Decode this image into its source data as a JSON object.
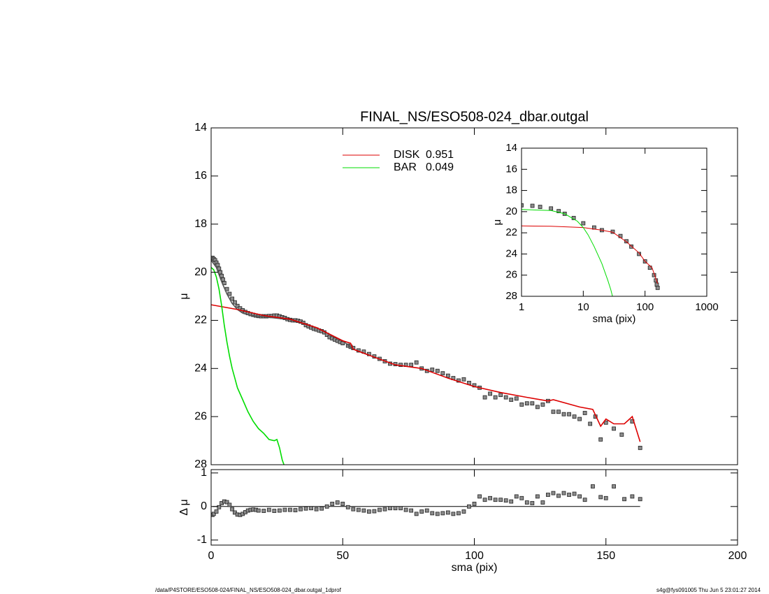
{
  "footer": {
    "left": "/data/P4STORE/ESO508-024/FINAL_NS/ESO508-024_dbar.outgal_1dprof",
    "right": "s4g@fys091005  Thu Jun  5 23:01:27 2014"
  },
  "chart_data": [
    {
      "type": "line",
      "title": "FINAL_NS/ESO508-024_dbar.outgal",
      "ylabel": "μ",
      "xlim": [
        0,
        200
      ],
      "xticks": [
        0,
        50,
        100,
        150,
        200
      ],
      "ylim": [
        28,
        14
      ],
      "yticks": [
        14,
        16,
        18,
        20,
        22,
        24,
        26,
        28
      ],
      "series": [
        {
          "mode": "markers",
          "color": "#8c8c8c",
          "x": [
            0.5,
            1,
            1.5,
            2,
            2.5,
            3,
            3.5,
            4,
            4.5,
            5,
            6,
            7,
            8,
            9,
            10,
            11,
            12,
            13,
            14,
            15,
            16,
            17,
            18,
            19,
            20,
            21,
            22,
            23,
            24,
            25,
            26,
            27,
            28,
            29,
            30,
            31,
            32,
            33,
            34,
            35,
            36,
            37,
            38,
            39,
            40,
            41,
            42,
            43,
            44,
            45,
            46,
            47,
            48,
            49,
            50,
            52,
            53,
            54,
            56,
            58,
            60,
            62,
            64,
            66,
            68,
            70,
            72,
            74,
            76,
            78,
            80,
            82,
            84,
            86,
            88,
            90,
            92,
            94,
            96,
            98,
            100,
            102,
            104,
            106,
            108,
            110,
            112,
            114,
            116,
            118,
            120,
            122,
            124,
            126,
            128,
            130,
            132,
            134,
            136,
            138,
            140,
            142,
            144,
            146,
            148,
            150,
            153,
            156,
            160,
            163
          ],
          "values": [
            19.4,
            19.45,
            19.5,
            19.6,
            19.7,
            19.85,
            20.0,
            20.15,
            20.3,
            20.45,
            20.7,
            20.9,
            21.1,
            21.25,
            21.4,
            21.5,
            21.58,
            21.65,
            21.7,
            21.74,
            21.77,
            21.8,
            21.82,
            21.83,
            21.83,
            21.83,
            21.82,
            21.82,
            21.8,
            21.8,
            21.83,
            21.87,
            21.9,
            21.95,
            21.98,
            22.0,
            22.0,
            22.02,
            22.05,
            22.1,
            22.2,
            22.25,
            22.3,
            22.35,
            22.38,
            22.42,
            22.45,
            22.5,
            22.6,
            22.7,
            22.75,
            22.8,
            22.85,
            22.9,
            22.95,
            23.05,
            23.1,
            23.15,
            23.25,
            23.3,
            23.4,
            23.5,
            23.6,
            23.7,
            23.8,
            23.82,
            23.85,
            23.85,
            23.85,
            23.75,
            24.0,
            24.1,
            24.05,
            24.1,
            24.2,
            24.3,
            24.4,
            24.5,
            24.45,
            24.6,
            24.7,
            24.8,
            25.2,
            25.05,
            25.2,
            25.1,
            25.2,
            25.3,
            25.25,
            25.5,
            25.45,
            25.45,
            25.6,
            25.5,
            25.35,
            25.8,
            25.8,
            25.9,
            25.9,
            26.0,
            26.1,
            25.85,
            26.3,
            26.0,
            26.95,
            26.25,
            26.5,
            26.75,
            26.2,
            27.3
          ]
        },
        {
          "mode": "lines",
          "color": "#555555",
          "x": [
            0,
            2,
            4,
            6,
            8,
            10,
            12,
            15,
            20,
            30,
            40,
            50,
            54,
            60
          ],
          "values": [
            19.5,
            19.8,
            20.4,
            20.9,
            21.3,
            21.55,
            21.7,
            21.8,
            21.85,
            21.97,
            22.3,
            22.85,
            23.2,
            23.45
          ]
        },
        {
          "mode": "lines",
          "name": "DISK",
          "fraction": 0.951,
          "color": "#dd0000",
          "x": [
            0,
            10,
            20,
            30,
            40,
            50,
            53,
            54,
            60,
            70,
            80,
            90,
            100,
            110,
            120,
            128,
            130,
            140,
            145,
            148,
            150,
            153,
            157,
            160,
            163
          ],
          "values": [
            21.35,
            21.55,
            21.8,
            21.95,
            22.3,
            22.85,
            22.95,
            23.2,
            23.45,
            23.85,
            24.0,
            24.4,
            24.75,
            25.0,
            25.2,
            25.35,
            25.3,
            25.6,
            25.7,
            26.4,
            26.1,
            26.3,
            26.3,
            26.0,
            27.05
          ]
        },
        {
          "mode": "lines",
          "name": "BAR",
          "fraction": 0.049,
          "color": "#00dd00",
          "x": [
            0,
            1,
            2,
            3,
            4,
            5,
            6,
            7,
            8,
            9,
            10,
            12,
            14,
            16,
            18,
            20,
            22,
            24,
            25,
            26,
            27,
            28
          ],
          "values": [
            19.8,
            19.9,
            20.2,
            20.7,
            21.4,
            22.2,
            22.9,
            23.5,
            24.0,
            24.4,
            24.8,
            25.3,
            25.8,
            26.2,
            26.5,
            26.7,
            26.95,
            27.0,
            26.95,
            27.3,
            27.8,
            28.1
          ]
        }
      ]
    },
    {
      "type": "line",
      "xlabel": "sma (pix)",
      "ylabel": "Δ μ",
      "xlim": [
        0,
        200
      ],
      "xticks": [
        0,
        50,
        100,
        150,
        200
      ],
      "ylim": [
        -1.15,
        1.1
      ],
      "yticks": [
        -1,
        0,
        1
      ],
      "series": [
        {
          "mode": "markers",
          "color": "#8c8c8c",
          "x": [
            0.5,
            1,
            2,
            3,
            4,
            5,
            6,
            7,
            8,
            9,
            10,
            11,
            12,
            13,
            14,
            15,
            16,
            17,
            18,
            20,
            22,
            24,
            26,
            28,
            30,
            32,
            34,
            36,
            38,
            40,
            42,
            44,
            46,
            48,
            50,
            52,
            54,
            56,
            58,
            60,
            62,
            64,
            66,
            68,
            70,
            72,
            74,
            76,
            78,
            80,
            82,
            84,
            86,
            88,
            90,
            92,
            94,
            96,
            98,
            100,
            102,
            104,
            106,
            108,
            110,
            112,
            114,
            116,
            118,
            120,
            122,
            124,
            126,
            128,
            130,
            132,
            134,
            136,
            138,
            140,
            142,
            145,
            148,
            150,
            153,
            157,
            160,
            163
          ],
          "values": [
            -0.25,
            -0.22,
            -0.15,
            -0.02,
            0.1,
            0.15,
            0.13,
            0.05,
            -0.08,
            -0.18,
            -0.24,
            -0.25,
            -0.22,
            -0.17,
            -0.12,
            -0.1,
            -0.09,
            -0.1,
            -0.12,
            -0.13,
            -0.1,
            -0.13,
            -0.12,
            -0.1,
            -0.1,
            -0.11,
            -0.08,
            -0.06,
            -0.05,
            -0.08,
            -0.06,
            0.0,
            0.08,
            0.12,
            0.08,
            -0.02,
            -0.08,
            -0.1,
            -0.12,
            -0.15,
            -0.14,
            -0.1,
            -0.08,
            -0.05,
            -0.05,
            -0.05,
            -0.1,
            -0.12,
            -0.22,
            -0.15,
            -0.12,
            -0.2,
            -0.22,
            -0.2,
            -0.18,
            -0.22,
            -0.2,
            -0.15,
            0.0,
            0.08,
            0.3,
            0.2,
            0.25,
            0.2,
            0.2,
            0.18,
            0.15,
            0.3,
            0.25,
            0.12,
            0.1,
            0.3,
            0.12,
            0.35,
            0.4,
            0.32,
            0.4,
            0.35,
            0.38,
            0.3,
            0.2,
            0.6,
            0.28,
            0.25,
            0.6,
            0.22,
            0.3,
            0.22
          ]
        }
      ]
    },
    {
      "type": "line",
      "xlabel": "sma (pix)",
      "ylabel": "μ",
      "xscale": "log",
      "xlim": [
        1,
        1000
      ],
      "xticks": [
        1,
        10,
        100,
        1000
      ],
      "ylim": [
        28,
        14
      ],
      "yticks": [
        14,
        16,
        18,
        20,
        22,
        24,
        26,
        28
      ],
      "series": [
        {
          "mode": "markers",
          "color": "#8c8c8c",
          "x": [
            1,
            1.5,
            2,
            3,
            4,
            5,
            7,
            10,
            15,
            20,
            30,
            40,
            50,
            60,
            80,
            100,
            120,
            140,
            150,
            155,
            160
          ],
          "values": [
            19.4,
            19.45,
            19.55,
            19.7,
            19.95,
            20.2,
            20.6,
            21.1,
            21.5,
            21.75,
            21.9,
            22.3,
            22.8,
            23.3,
            24.0,
            24.7,
            25.3,
            26.0,
            26.5,
            26.9,
            27.2
          ]
        },
        {
          "mode": "lines",
          "color": "#dd0000",
          "x": [
            1,
            3,
            10,
            20,
            30,
            50,
            80,
            100,
            130,
            160
          ],
          "values": [
            21.35,
            21.38,
            21.5,
            21.75,
            21.95,
            22.85,
            23.9,
            24.7,
            25.3,
            26.8
          ]
        },
        {
          "mode": "lines",
          "color": "#00dd00",
          "x": [
            1,
            3,
            5,
            8,
            10,
            12,
            15,
            20,
            25,
            28,
            30
          ],
          "values": [
            19.8,
            19.9,
            20.2,
            20.9,
            21.5,
            22.2,
            23.3,
            24.9,
            26.5,
            27.4,
            28.1
          ]
        }
      ]
    }
  ]
}
